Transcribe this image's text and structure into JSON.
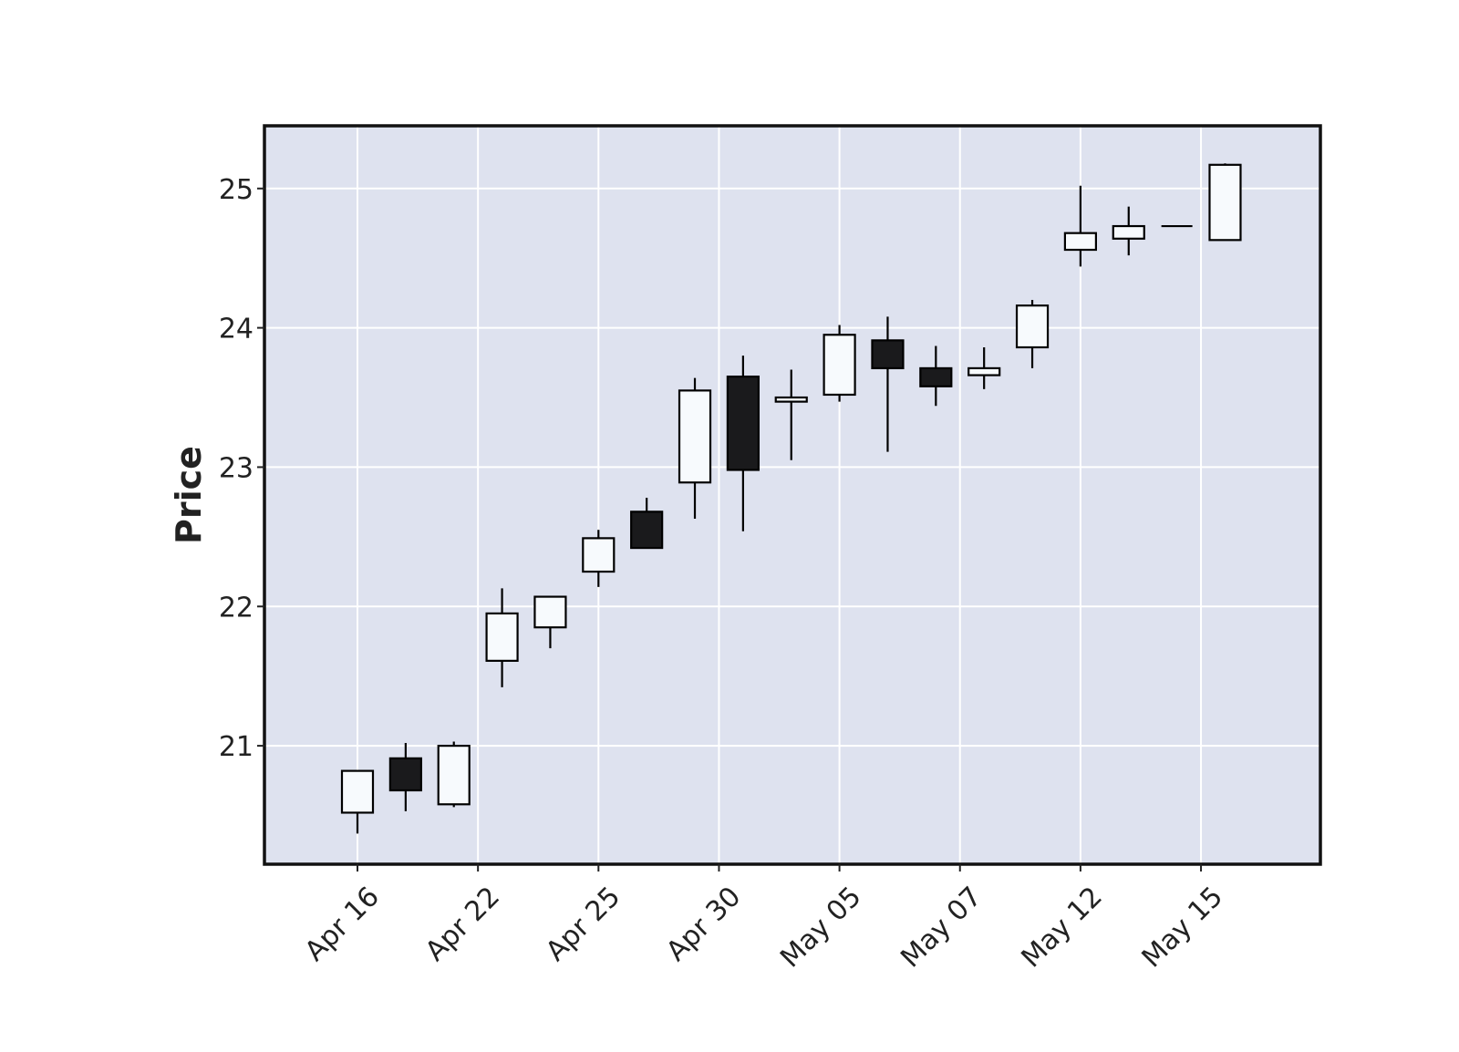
{
  "chart_data": {
    "type": "candlestick",
    "title": "",
    "xlabel": "",
    "ylabel": "Price",
    "ylim": [
      20.15,
      25.45
    ],
    "yticks": [
      21,
      22,
      23,
      24,
      25
    ],
    "xtick_labels": [
      "Apr 16",
      "Apr 22",
      "Apr 25",
      "Apr 30",
      "May 05",
      "May 07",
      "May 12",
      "May 15"
    ],
    "xtick_positions": [
      0,
      2.5,
      5,
      7.5,
      10,
      12.5,
      15,
      17.5
    ],
    "grid": true,
    "colors": {
      "plot_background": "#dee2ef",
      "grid": "#ffffff",
      "up_fill": "#f7fafd",
      "down_fill": "#1a1a1c",
      "edge": "#000000"
    },
    "candles": [
      {
        "open": 20.52,
        "high": 20.82,
        "low": 20.37,
        "close": 20.82
      },
      {
        "open": 20.91,
        "high": 21.02,
        "low": 20.53,
        "close": 20.68
      },
      {
        "open": 20.58,
        "high": 21.03,
        "low": 20.56,
        "close": 21.0
      },
      {
        "open": 21.61,
        "high": 22.13,
        "low": 21.42,
        "close": 21.95
      },
      {
        "open": 21.85,
        "high": 22.07,
        "low": 21.7,
        "close": 22.07
      },
      {
        "open": 22.25,
        "high": 22.55,
        "low": 22.14,
        "close": 22.49
      },
      {
        "open": 22.68,
        "high": 22.78,
        "low": 22.42,
        "close": 22.42
      },
      {
        "open": 22.89,
        "high": 23.64,
        "low": 22.63,
        "close": 23.55
      },
      {
        "open": 23.65,
        "high": 23.8,
        "low": 22.54,
        "close": 22.98
      },
      {
        "open": 23.47,
        "high": 23.7,
        "low": 23.05,
        "close": 23.5
      },
      {
        "open": 23.52,
        "high": 24.02,
        "low": 23.47,
        "close": 23.95
      },
      {
        "open": 23.91,
        "high": 24.08,
        "low": 23.11,
        "close": 23.71
      },
      {
        "open": 23.71,
        "high": 23.87,
        "low": 23.44,
        "close": 23.58
      },
      {
        "open": 23.66,
        "high": 23.86,
        "low": 23.56,
        "close": 23.71
      },
      {
        "open": 23.86,
        "high": 24.2,
        "low": 23.71,
        "close": 24.16
      },
      {
        "open": 24.56,
        "high": 25.02,
        "low": 24.44,
        "close": 24.68
      },
      {
        "open": 24.64,
        "high": 24.87,
        "low": 24.52,
        "close": 24.73
      },
      {
        "open": 24.73,
        "high": 24.73,
        "low": 24.73,
        "close": 24.73
      },
      {
        "open": 24.63,
        "high": 25.18,
        "low": 24.63,
        "close": 25.17
      }
    ]
  }
}
